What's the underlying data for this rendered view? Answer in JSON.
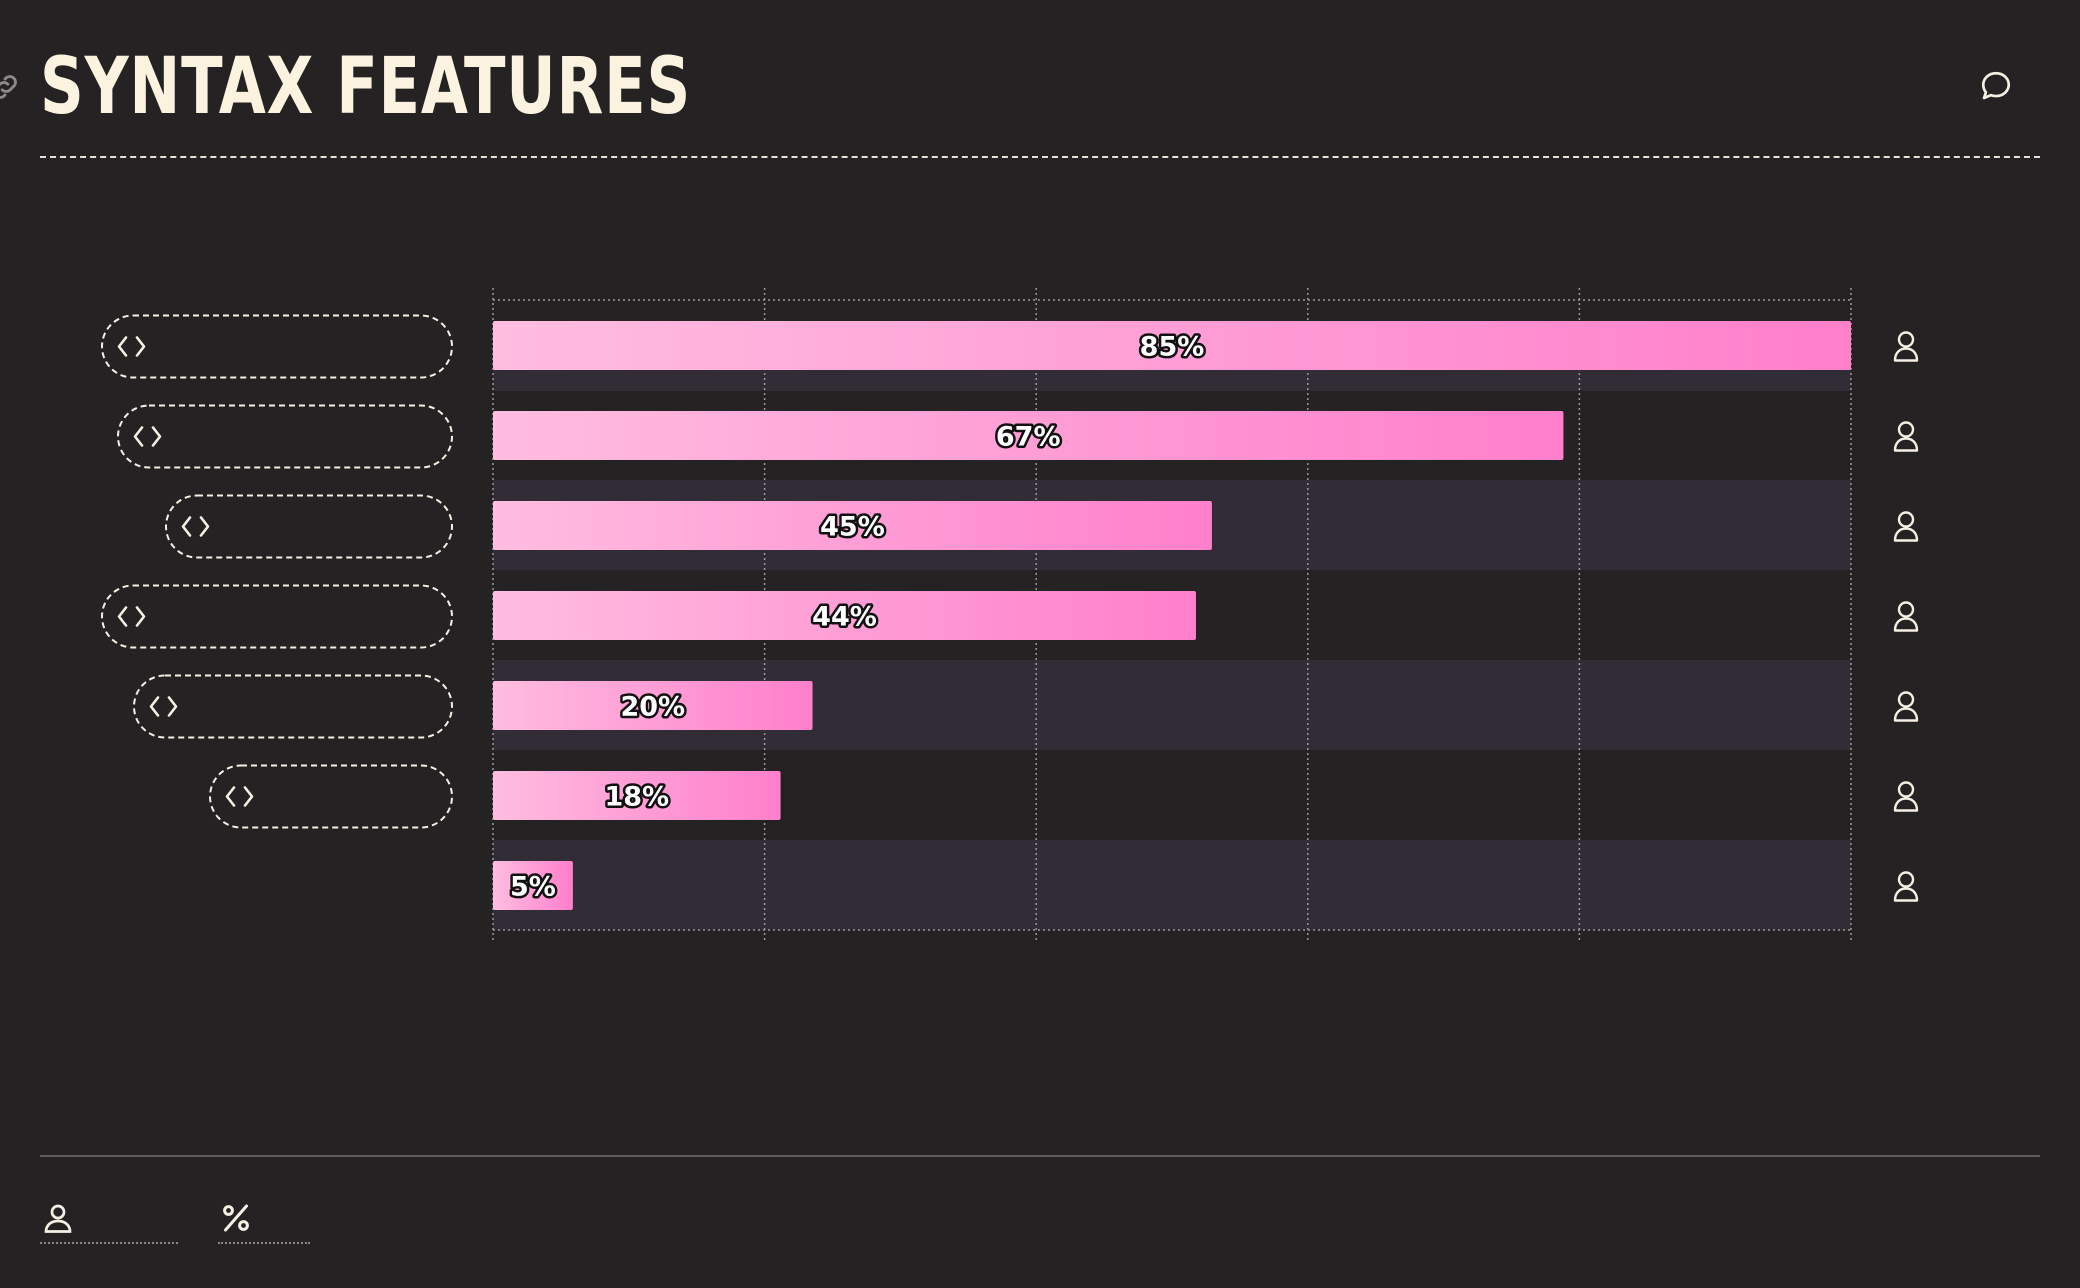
{
  "header": {
    "title": "SYNTAX FEATURES",
    "link_icon": "link-icon",
    "comment_icon": "comment-icon"
  },
  "colors": {
    "background": "#252223",
    "bar_start": "#ffbde0",
    "bar_end": "#ff7fcb",
    "band": "#322c37",
    "text": "#fbf3df"
  },
  "chart_data": {
    "type": "bar",
    "orientation": "horizontal",
    "categories": [
      "",
      "",
      "",
      "",
      "",
      "",
      ""
    ],
    "values": [
      85,
      67,
      45,
      44,
      20,
      18,
      5
    ],
    "data_labels": [
      "85%",
      "67%",
      "45%",
      "44%",
      "20%",
      "18%",
      "5%"
    ],
    "category_icon": "code-icon",
    "row_icon": "user-icon",
    "xlim": [
      0,
      85
    ],
    "x_gridlines": 5,
    "grid": true,
    "title": "SYNTAX FEATURES",
    "xlabel": "",
    "ylabel": ""
  },
  "legend": {
    "items": [
      {
        "icon": "user-icon",
        "label": ""
      },
      {
        "icon": "percent-icon",
        "label": ""
      }
    ]
  }
}
